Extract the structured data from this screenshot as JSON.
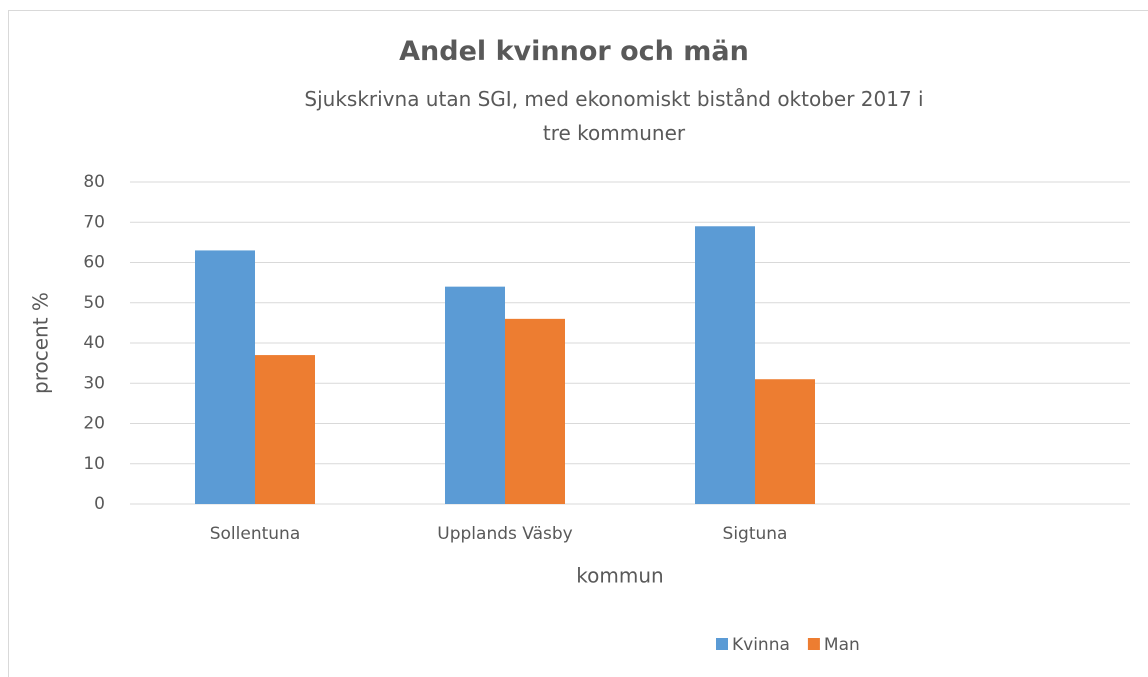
{
  "chart_data": {
    "type": "bar",
    "title": "Andel kvinnor och män",
    "subtitle": "Sjukskrivna utan SGI, med ekonomiskt bistånd oktober 2017 i tre kommuner",
    "x_label": "kommun",
    "y_label": "procent %",
    "categories": [
      "Sollentuna",
      "Upplands Väsby",
      "Sigtuna",
      null
    ],
    "series": [
      {
        "name": "Kvinna",
        "color": "#5b9bd5",
        "values": [
          63,
          54,
          69,
          null
        ]
      },
      {
        "name": "Man",
        "color": "#ed7d31",
        "values": [
          37,
          46,
          31,
          null
        ]
      }
    ],
    "ylim": [
      0,
      80
    ],
    "yticks": [
      0,
      10,
      20,
      30,
      40,
      50,
      60,
      70,
      80
    ],
    "grid": true,
    "legend": "bottom"
  }
}
